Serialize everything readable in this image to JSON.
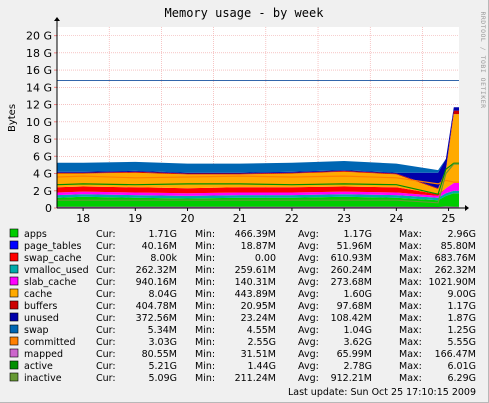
{
  "chart_data": {
    "type": "area",
    "title": "Memory usage - by week",
    "ylabel": "Bytes",
    "side_label": "RRDTOOL / TOBI OETIKER",
    "ylim": [
      0,
      21
    ],
    "yticks": [
      0,
      2,
      4,
      6,
      8,
      10,
      12,
      14,
      16,
      18,
      20
    ],
    "ytick_labels": [
      "0",
      "2 G",
      "4 G",
      "6 G",
      "8 G",
      "10 G",
      "12 G",
      "14 G",
      "16 G",
      "18 G",
      "20 G"
    ],
    "x": [
      "18",
      "19",
      "20",
      "21",
      "22",
      "23",
      "24",
      "25"
    ],
    "total_memory_gb": 14.8,
    "series": [
      {
        "name": "apps",
        "color": "#00cc00",
        "cur": "1.71G",
        "min": "466.39M",
        "avg": "1.17G",
        "max": "2.96G"
      },
      {
        "name": "page_tables",
        "color": "#0000ff",
        "cur": "40.16M",
        "min": "18.87M",
        "avg": "51.96M",
        "max": "85.80M"
      },
      {
        "name": "swap_cache",
        "color": "#ff0000",
        "cur": "8.00k",
        "min": "0.00",
        "avg": "610.93M",
        "max": "683.76M"
      },
      {
        "name": "vmalloc_used",
        "color": "#00aaaa",
        "cur": "262.32M",
        "min": "259.61M",
        "avg": "260.24M",
        "max": "262.32M"
      },
      {
        "name": "slab_cache",
        "color": "#ff00ff",
        "cur": "940.16M",
        "min": "140.31M",
        "avg": "273.68M",
        "max": "1021.90M"
      },
      {
        "name": "cache",
        "color": "#ffaa00",
        "cur": "8.04G",
        "min": "443.89M",
        "avg": "1.60G",
        "max": "9.00G"
      },
      {
        "name": "buffers",
        "color": "#cc0000",
        "cur": "404.78M",
        "min": "20.95M",
        "avg": "97.68M",
        "max": "1.17G"
      },
      {
        "name": "unused",
        "color": "#0000aa",
        "cur": "372.56M",
        "min": "23.24M",
        "avg": "108.42M",
        "max": "1.87G"
      },
      {
        "name": "swap",
        "color": "#0066b3",
        "cur": "5.34M",
        "min": "4.55M",
        "avg": "1.04G",
        "max": "1.25G"
      },
      {
        "name": "committed",
        "color": "#ff8000",
        "cur": "3.03G",
        "min": "2.55G",
        "avg": "3.62G",
        "max": "5.55G"
      },
      {
        "name": "mapped",
        "color": "#cc66cc",
        "cur": "80.55M",
        "min": "31.51M",
        "avg": "65.99M",
        "max": "166.47M"
      },
      {
        "name": "active",
        "color": "#008f00",
        "cur": "5.21G",
        "min": "1.44G",
        "avg": "2.78G",
        "max": "6.01G"
      },
      {
        "name": "inactive",
        "color": "#669933",
        "cur": "5.09G",
        "min": "211.24M",
        "avg": "912.21M",
        "max": "6.29G"
      }
    ],
    "stack": {
      "days": [
        17.5,
        18,
        19,
        20,
        21,
        22,
        23,
        24,
        24.8,
        24.95,
        25.1,
        25.2
      ],
      "apps": [
        1.2,
        1.3,
        1.2,
        1.1,
        1.2,
        1.2,
        1.3,
        1.2,
        0.9,
        1.4,
        1.7,
        1.7
      ],
      "vmalloc_used": [
        0.3,
        0.3,
        0.3,
        0.3,
        0.3,
        0.3,
        0.3,
        0.3,
        0.3,
        0.3,
        0.3,
        0.3
      ],
      "slab_cache": [
        0.3,
        0.3,
        0.3,
        0.3,
        0.3,
        0.3,
        0.3,
        0.3,
        0.2,
        0.6,
        0.9,
        0.9
      ],
      "swap_cache": [
        0.6,
        0.6,
        0.6,
        0.6,
        0.6,
        0.6,
        0.6,
        0.6,
        0.2,
        0.0,
        0.0,
        0.0
      ],
      "cache": [
        1.6,
        1.5,
        1.7,
        1.6,
        1.5,
        1.6,
        1.7,
        1.5,
        0.6,
        2.0,
        8.0,
        8.0
      ],
      "buffers": [
        0.1,
        0.1,
        0.1,
        0.1,
        0.1,
        0.1,
        0.1,
        0.1,
        0.1,
        0.2,
        0.4,
        0.4
      ],
      "unused": [
        0.1,
        0.1,
        0.1,
        0.1,
        0.1,
        0.1,
        0.1,
        0.1,
        1.8,
        1.2,
        0.4,
        0.4
      ],
      "swap": [
        1.05,
        1.05,
        1.05,
        1.05,
        1.05,
        1.05,
        1.05,
        1.05,
        0.3,
        0.0,
        0.0,
        0.0
      ]
    },
    "lines": {
      "committed": [
        3.6,
        3.7,
        3.5,
        3.6,
        3.7,
        3.6,
        3.7,
        3.5,
        2.8,
        3.2,
        3.0,
        3.0
      ],
      "active": [
        2.7,
        2.8,
        2.7,
        2.8,
        2.8,
        2.7,
        2.8,
        2.7,
        1.6,
        4.5,
        5.2,
        5.2
      ],
      "inactive": [
        0.9,
        0.9,
        0.9,
        0.9,
        0.9,
        0.9,
        0.9,
        0.9,
        0.6,
        4.0,
        5.1,
        5.1
      ],
      "mapped": [
        0.07,
        0.07,
        0.07,
        0.07,
        0.07,
        0.07,
        0.07,
        0.07,
        0.05,
        0.1,
        0.08,
        0.08
      ]
    },
    "grid": true,
    "legend_position": "bottom"
  },
  "legend_labels": {
    "cur": "Cur:",
    "min": "Min:",
    "avg": "Avg:",
    "max": "Max:"
  },
  "footer": {
    "last_update": "Last update: Sun Oct 25 17:10:15 2009"
  }
}
